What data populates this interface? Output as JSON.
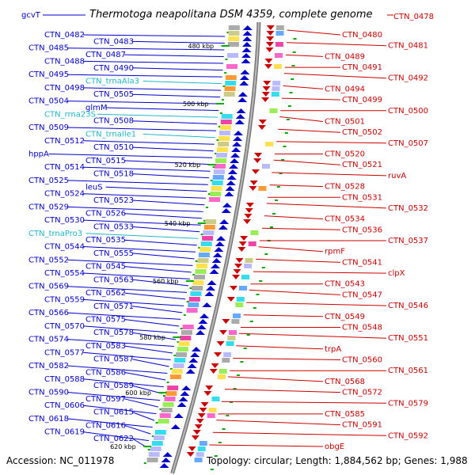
{
  "header": {
    "gene_label": "gcvT",
    "title": "Thermotoga neapolitana DSM 4359, complete genome",
    "top_right_label": "CTN_0478"
  },
  "footer": {
    "accession": "Accession: NC_011978",
    "topology": "Topology: circular; Length: 1,884,562 bp; Genes: 1,988"
  },
  "colors": {
    "forward": "#0000cc",
    "reverse": "#cc0000",
    "rna": "#1fb6c9",
    "backbone": "#888888",
    "tick": "#00aa00"
  },
  "kbp_labels": [
    "480 kbp",
    "500 kbp",
    "520 kbp",
    "540 kbp",
    "560 kbp",
    "580 kbp",
    "600 kbp",
    "620 kbp"
  ],
  "left_labels": [
    {
      "text": "CTN_0482",
      "kind": "gene"
    },
    {
      "text": "CTN_0483",
      "kind": "gene"
    },
    {
      "text": "CTN_0485",
      "kind": "gene"
    },
    {
      "text": "CTN_0487",
      "kind": "gene"
    },
    {
      "text": "CTN_0488",
      "kind": "gene"
    },
    {
      "text": "CTN_0490",
      "kind": "gene"
    },
    {
      "text": "CTN_0495",
      "kind": "gene"
    },
    {
      "text": "CTN_trnaAla3",
      "kind": "rna"
    },
    {
      "text": "CTN_0498",
      "kind": "gene"
    },
    {
      "text": "CTN_0505",
      "kind": "gene"
    },
    {
      "text": "CTN_0504",
      "kind": "gene"
    },
    {
      "text": "glmM",
      "kind": "gene"
    },
    {
      "text": "CTN_rrna23S",
      "kind": "rna"
    },
    {
      "text": "CTN_0508",
      "kind": "gene"
    },
    {
      "text": "CTN_0509",
      "kind": "gene"
    },
    {
      "text": "CTN_trnaIle1",
      "kind": "rna"
    },
    {
      "text": "CTN_0512",
      "kind": "gene"
    },
    {
      "text": "CTN_0510",
      "kind": "gene"
    },
    {
      "text": "hppA",
      "kind": "gene"
    },
    {
      "text": "CTN_0515",
      "kind": "gene"
    },
    {
      "text": "CTN_0514",
      "kind": "gene"
    },
    {
      "text": "CTN_0518",
      "kind": "gene"
    },
    {
      "text": "CTN_0525",
      "kind": "gene"
    },
    {
      "text": "leuS",
      "kind": "gene"
    },
    {
      "text": "CTN_0524",
      "kind": "gene"
    },
    {
      "text": "CTN_0523",
      "kind": "gene"
    },
    {
      "text": "CTN_0529",
      "kind": "gene"
    },
    {
      "text": "CTN_0526",
      "kind": "gene"
    },
    {
      "text": "CTN_0530",
      "kind": "gene"
    },
    {
      "text": "CTN_0533",
      "kind": "gene"
    },
    {
      "text": "CTN_trnaPro3",
      "kind": "rna"
    },
    {
      "text": "CTN_0535",
      "kind": "gene"
    },
    {
      "text": "CTN_0544",
      "kind": "gene"
    },
    {
      "text": "CTN_0555",
      "kind": "gene"
    },
    {
      "text": "CTN_0552",
      "kind": "gene"
    },
    {
      "text": "CTN_0545",
      "kind": "gene"
    },
    {
      "text": "CTN_0554",
      "kind": "gene"
    },
    {
      "text": "CTN_0563",
      "kind": "gene"
    },
    {
      "text": "CTN_0569",
      "kind": "gene"
    },
    {
      "text": "CTN_0562",
      "kind": "gene"
    },
    {
      "text": "CTN_0559",
      "kind": "gene"
    },
    {
      "text": "CTN_0571",
      "kind": "gene"
    },
    {
      "text": "CTN_0566",
      "kind": "gene"
    },
    {
      "text": "CTN_0575",
      "kind": "gene"
    },
    {
      "text": "CTN_0570",
      "kind": "gene"
    },
    {
      "text": "CTN_0578",
      "kind": "gene"
    },
    {
      "text": "CTN_0574",
      "kind": "gene"
    },
    {
      "text": "CTN_0583",
      "kind": "gene"
    },
    {
      "text": "CTN_0577",
      "kind": "gene"
    },
    {
      "text": "CTN_0587",
      "kind": "gene"
    },
    {
      "text": "CTN_0582",
      "kind": "gene"
    },
    {
      "text": "CTN_0586",
      "kind": "gene"
    },
    {
      "text": "CTN_0588",
      "kind": "gene"
    },
    {
      "text": "CTN_0589",
      "kind": "gene"
    },
    {
      "text": "CTN_0590",
      "kind": "gene"
    },
    {
      "text": "CTN_0597",
      "kind": "gene"
    },
    {
      "text": "CTN_0606",
      "kind": "gene"
    },
    {
      "text": "CTN_0615",
      "kind": "gene"
    },
    {
      "text": "CTN_0618",
      "kind": "gene"
    },
    {
      "text": "CTN_0616",
      "kind": "gene"
    },
    {
      "text": "CTN_0619",
      "kind": "gene"
    },
    {
      "text": "CTN_0622",
      "kind": "gene"
    }
  ],
  "right_labels": [
    "CTN_0480",
    "CTN_0481",
    "CTN_0489",
    "CTN_0491",
    "CTN_0492",
    "CTN_0494",
    "CTN_0499",
    "CTN_0500",
    "CTN_0501",
    "CTN_0502",
    "CTN_0507",
    "CTN_0520",
    "CTN_0521",
    "ruvA",
    "CTN_0528",
    "CTN_0531",
    "CTN_0532",
    "CTN_0534",
    "CTN_0536",
    "CTN_0537",
    "rpmF",
    "CTN_0541",
    "clpX",
    "CTN_0543",
    "CTN_0547",
    "CTN_0546",
    "CTN_0549",
    "CTN_0548",
    "CTN_0551",
    "trpA",
    "CTN_0560",
    "CTN_0561",
    "CTN_0568",
    "CTN_0572",
    "CTN_0579",
    "CTN_0585",
    "CTN_0591",
    "CTN_0592",
    "obgE"
  ]
}
